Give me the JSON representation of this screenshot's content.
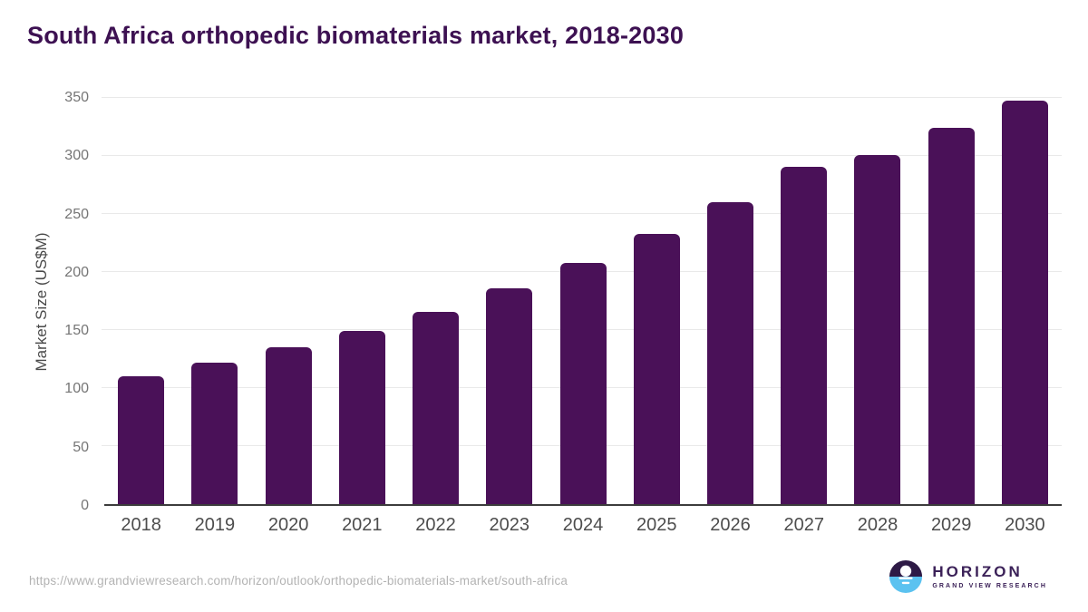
{
  "chart_data": {
    "type": "bar",
    "title": "South Africa orthopedic biomaterials market, 2018-2030",
    "categories": [
      "2018",
      "2019",
      "2020",
      "2021",
      "2022",
      "2023",
      "2024",
      "2025",
      "2026",
      "2027",
      "2028",
      "2029",
      "2030"
    ],
    "values": [
      110,
      122,
      135,
      149,
      166,
      186,
      208,
      233,
      260,
      291,
      301,
      324,
      348
    ],
    "xlabel": "",
    "ylabel": "Market Size (US$M)",
    "ylim": [
      0,
      350
    ],
    "yticks": [
      0,
      50,
      100,
      150,
      200,
      250,
      300,
      350
    ],
    "grid": "horizontal",
    "legend": "none",
    "bar_color": "#4a1158",
    "title_color": "#3d1152",
    "gridline_color": "#e9e9e9",
    "axis_line_color": "#3c3c3c"
  },
  "footer": {
    "source_url": "https://www.grandviewresearch.com/horizon/outlook/orthopedic-biomaterials-market/south-africa",
    "logo": {
      "name": "HORIZON",
      "subtitle": "GRAND VIEW RESEARCH",
      "brand_purple": "#2e1a46",
      "brand_blue": "#5bc2f0"
    }
  }
}
